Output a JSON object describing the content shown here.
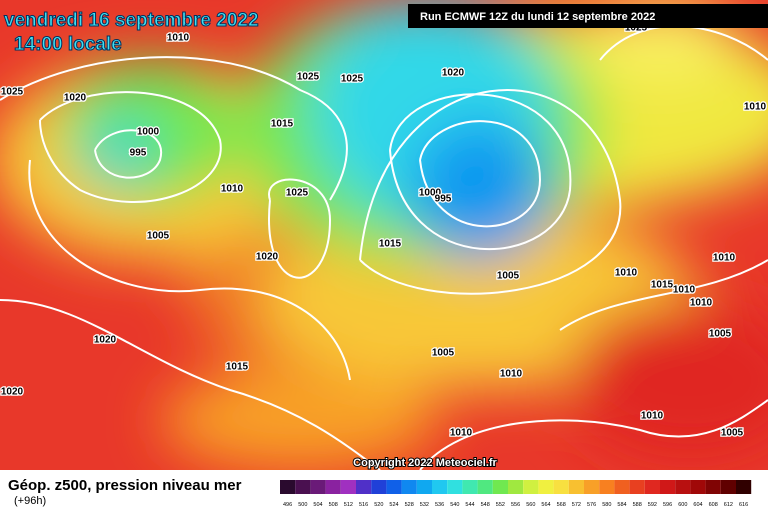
{
  "header": {
    "date": "vendredi 16 septembre 2022",
    "time": "14:00 locale",
    "run": "Run ECMWF 12Z du lundi 12 septembre 2022"
  },
  "copyright": "Copyright 2022 Meteociel.fr",
  "footer": {
    "title": "Géop. z500, pression niveau mer",
    "lead": "(+96h)"
  },
  "isobar_labels": [
    "1010",
    "1025",
    "1025",
    "1020",
    "1025",
    "1020",
    "1000",
    "995",
    "1015",
    "1010",
    "1025",
    "1000",
    "995",
    "1005",
    "1020",
    "1015",
    "1005",
    "1010",
    "1015",
    "1010",
    "1010",
    "1010",
    "1005",
    "1010",
    "1025",
    "1020",
    "1015",
    "1005",
    "1010",
    "1010",
    "1010",
    "1005",
    "1020"
  ],
  "scale": {
    "values": [
      496,
      500,
      504,
      508,
      512,
      516,
      520,
      524,
      528,
      532,
      536,
      540,
      544,
      548,
      552,
      556,
      560,
      564,
      568,
      572,
      576,
      580,
      584,
      588,
      592,
      596,
      600,
      604,
      608,
      612,
      616
    ],
    "colors": [
      "#2a0a2e",
      "#4a1050",
      "#6a1a78",
      "#8a22a0",
      "#a030c0",
      "#5030c8",
      "#2040d8",
      "#1060e8",
      "#1088f0",
      "#10a8f0",
      "#20c8f0",
      "#30e0e0",
      "#40e8b0",
      "#50e880",
      "#70e850",
      "#a0e840",
      "#d0f040",
      "#f0f040",
      "#f8e040",
      "#f8c030",
      "#f8a028",
      "#f88020",
      "#f06020",
      "#e84020",
      "#e02820",
      "#d01818",
      "#b81010",
      "#a00808",
      "#800404",
      "#600000",
      "#300000"
    ]
  }
}
